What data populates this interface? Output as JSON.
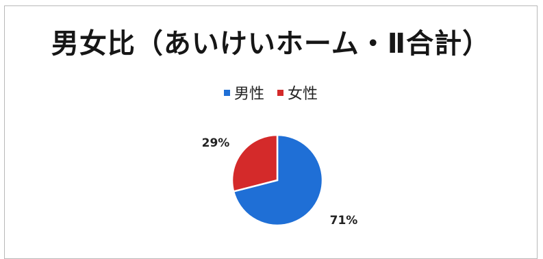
{
  "chart_data": {
    "type": "pie",
    "title": "男女比（あいけいホーム・Ⅱ合計）",
    "legend": [
      "男性",
      "女性"
    ],
    "legend_position": "top",
    "slices": [
      {
        "label": "男性",
        "value": 71,
        "display": "71%",
        "color": "#1f6fd6"
      },
      {
        "label": "女性",
        "value": 29,
        "display": "29%",
        "color": "#d42a2a"
      }
    ]
  }
}
